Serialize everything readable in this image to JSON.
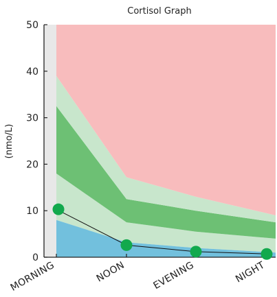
{
  "chart_data": {
    "type": "area",
    "title": "Cortisol Graph",
    "xlabel": "",
    "ylabel": "(nmo/L)",
    "categories": [
      "MORNING",
      "NOON",
      "EVENING",
      "NIGHT"
    ],
    "ylim": [
      0,
      50
    ],
    "yticks": [
      0,
      10,
      20,
      30,
      40,
      50
    ],
    "grid": false,
    "legend": "none",
    "bands": [
      {
        "lower": [
          8.0,
          3.2,
          2.0,
          1.0
        ],
        "upper": [
          18.0,
          7.5,
          5.5,
          4.0
        ],
        "color": "#c8e6cc"
      },
      {
        "lower": [
          18.0,
          7.5,
          5.5,
          4.0
        ],
        "upper": [
          32.5,
          12.5,
          10.0,
          7.5
        ],
        "color": "#6dc074"
      },
      {
        "lower": [
          32.5,
          12.5,
          10.0,
          7.5
        ],
        "upper": [
          39.0,
          17.2,
          13.0,
          9.0
        ],
        "color": "#c8e6cc"
      },
      {
        "lower": [
          39.0,
          17.2,
          13.0,
          9.0
        ],
        "upper": [
          50,
          50,
          50,
          50
        ],
        "color": "#f8bcbd"
      }
    ],
    "low_area": {
      "upper": [
        8.0,
        3.2,
        2.0,
        1.0
      ],
      "color": "#72c0dd"
    },
    "series": [
      {
        "values": [
          10.3,
          2.6,
          1.2,
          0.7
        ],
        "color": "#12a94d"
      }
    ],
    "background_strip_color": "#e8e8e8"
  }
}
